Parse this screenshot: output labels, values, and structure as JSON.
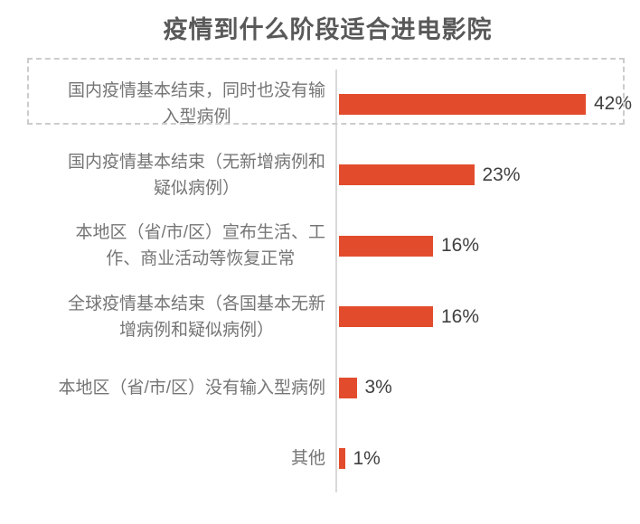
{
  "title": {
    "text": "疫情到什么阶段适合进电影院",
    "color": "#595959"
  },
  "chart_data": {
    "type": "bar",
    "orientation": "horizontal",
    "title": "疫情到什么阶段适合进电影院",
    "categories": [
      "国内疫情基本结束，同时也没有输入型病例",
      "国内疫情基本结束（无新增病例和疑似病例）",
      "本地区（省/市/区）宣布生活、工作、商业活动等恢复正常",
      "全球疫情基本结束（各国基本无新增病例和疑似病例）",
      "本地区（省/市/区）没有输入型病例",
      "其他"
    ],
    "values": [
      42,
      23,
      16,
      16,
      3,
      1
    ],
    "value_labels": [
      "42%",
      "23%",
      "16%",
      "16%",
      "3%",
      "1%"
    ],
    "unit": "%",
    "xlim": [
      0,
      45
    ],
    "grid": false,
    "legend": false,
    "highlighted_category_index": 0,
    "highlight_style": "dashed-box",
    "bar_color": "#E24C2C",
    "title_color": "#595959",
    "category_label_color": "#757575",
    "value_label_color": "#404040",
    "axis_line_color": "#D9D9D9"
  },
  "rows": [
    {
      "label": "国内疫情基本结束，同时也没有输\n入型病例",
      "value": 42,
      "pct": "42%",
      "highlighted": true
    },
    {
      "label": "国内疫情基本结束（无新增病例和\n疑似病例）",
      "value": 23,
      "pct": "23%",
      "highlighted": false
    },
    {
      "label": "本地区（省/市/区）宣布生活、工\n作、商业活动等恢复正常",
      "value": 16,
      "pct": "16%",
      "highlighted": false
    },
    {
      "label": "全球疫情基本结束（各国基本无新\n增病例和疑似病例）",
      "value": 16,
      "pct": "16%",
      "highlighted": false
    },
    {
      "label": "本地区（省/市/区）没有输入型病例",
      "value": 3,
      "pct": "3%",
      "highlighted": false
    },
    {
      "label": "其他",
      "value": 1,
      "pct": "1%",
      "highlighted": false
    }
  ]
}
